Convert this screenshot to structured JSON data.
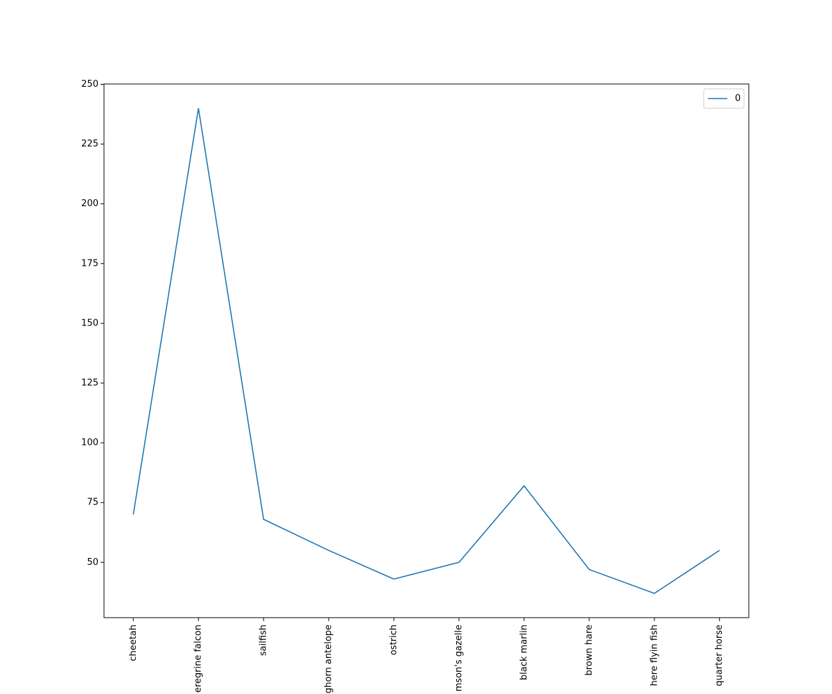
{
  "chart_data": {
    "type": "line",
    "categories": [
      "cheetah",
      "eregrine falcon",
      "sailfish",
      "ghorn antelope",
      "ostrich",
      "mson's gazelle",
      "black marlin",
      "brown hare",
      "here flyin fish",
      "quarter horse"
    ],
    "series": [
      {
        "name": "0",
        "color": "#1f77b4",
        "values": [
          70,
          240,
          68,
          55,
          43,
          50,
          82,
          47,
          37,
          55
        ]
      }
    ],
    "ylim": [
      26.85,
      250.15
    ],
    "yticks": [
      50,
      75,
      100,
      125,
      150,
      175,
      200,
      225,
      250
    ],
    "legend": "upper right",
    "grid": false
  }
}
